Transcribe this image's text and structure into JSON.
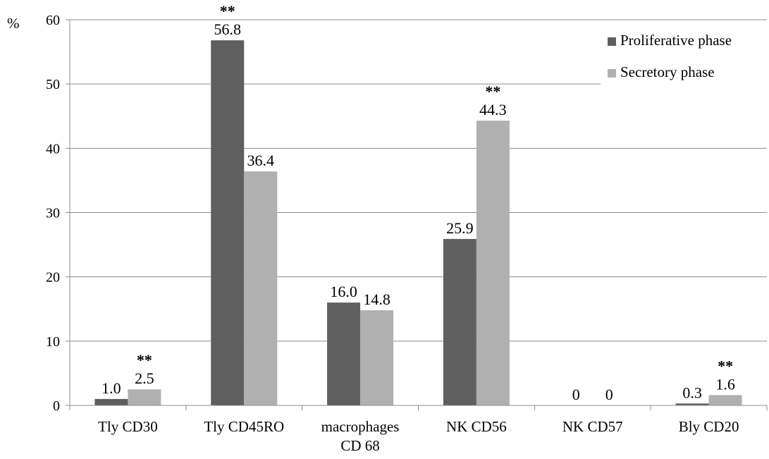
{
  "chart_data": {
    "type": "bar",
    "unit_label": "%",
    "ylim": [
      0,
      60
    ],
    "yticks": [
      0,
      10,
      20,
      30,
      40,
      50,
      60
    ],
    "grid": true,
    "legend_position": "top-right",
    "categories": [
      [
        "Tly CD30"
      ],
      [
        "Tly CD45RO"
      ],
      [
        "macrophages",
        "CD 68"
      ],
      [
        "NK CD56"
      ],
      [
        "NK CD57"
      ],
      [
        "Bly CD20"
      ]
    ],
    "series": [
      {
        "name": "Proliferative phase",
        "color": "#5f5f5f",
        "values": [
          1.0,
          56.8,
          16.0,
          25.9,
          0,
          0.3
        ],
        "labels": [
          "1.0",
          "56.8",
          "16.0",
          "25.9",
          "0",
          "0.3"
        ],
        "significance": [
          "",
          "**",
          "",
          "",
          "",
          ""
        ]
      },
      {
        "name": "Secretory phase",
        "color": "#b0b0b0",
        "values": [
          2.5,
          36.4,
          14.8,
          44.3,
          0,
          1.6
        ],
        "labels": [
          "2.5",
          "36.4",
          "14.8",
          "44.3",
          "0",
          "1.6"
        ],
        "significance": [
          "**",
          "",
          "",
          "**",
          "",
          "**"
        ]
      }
    ]
  }
}
